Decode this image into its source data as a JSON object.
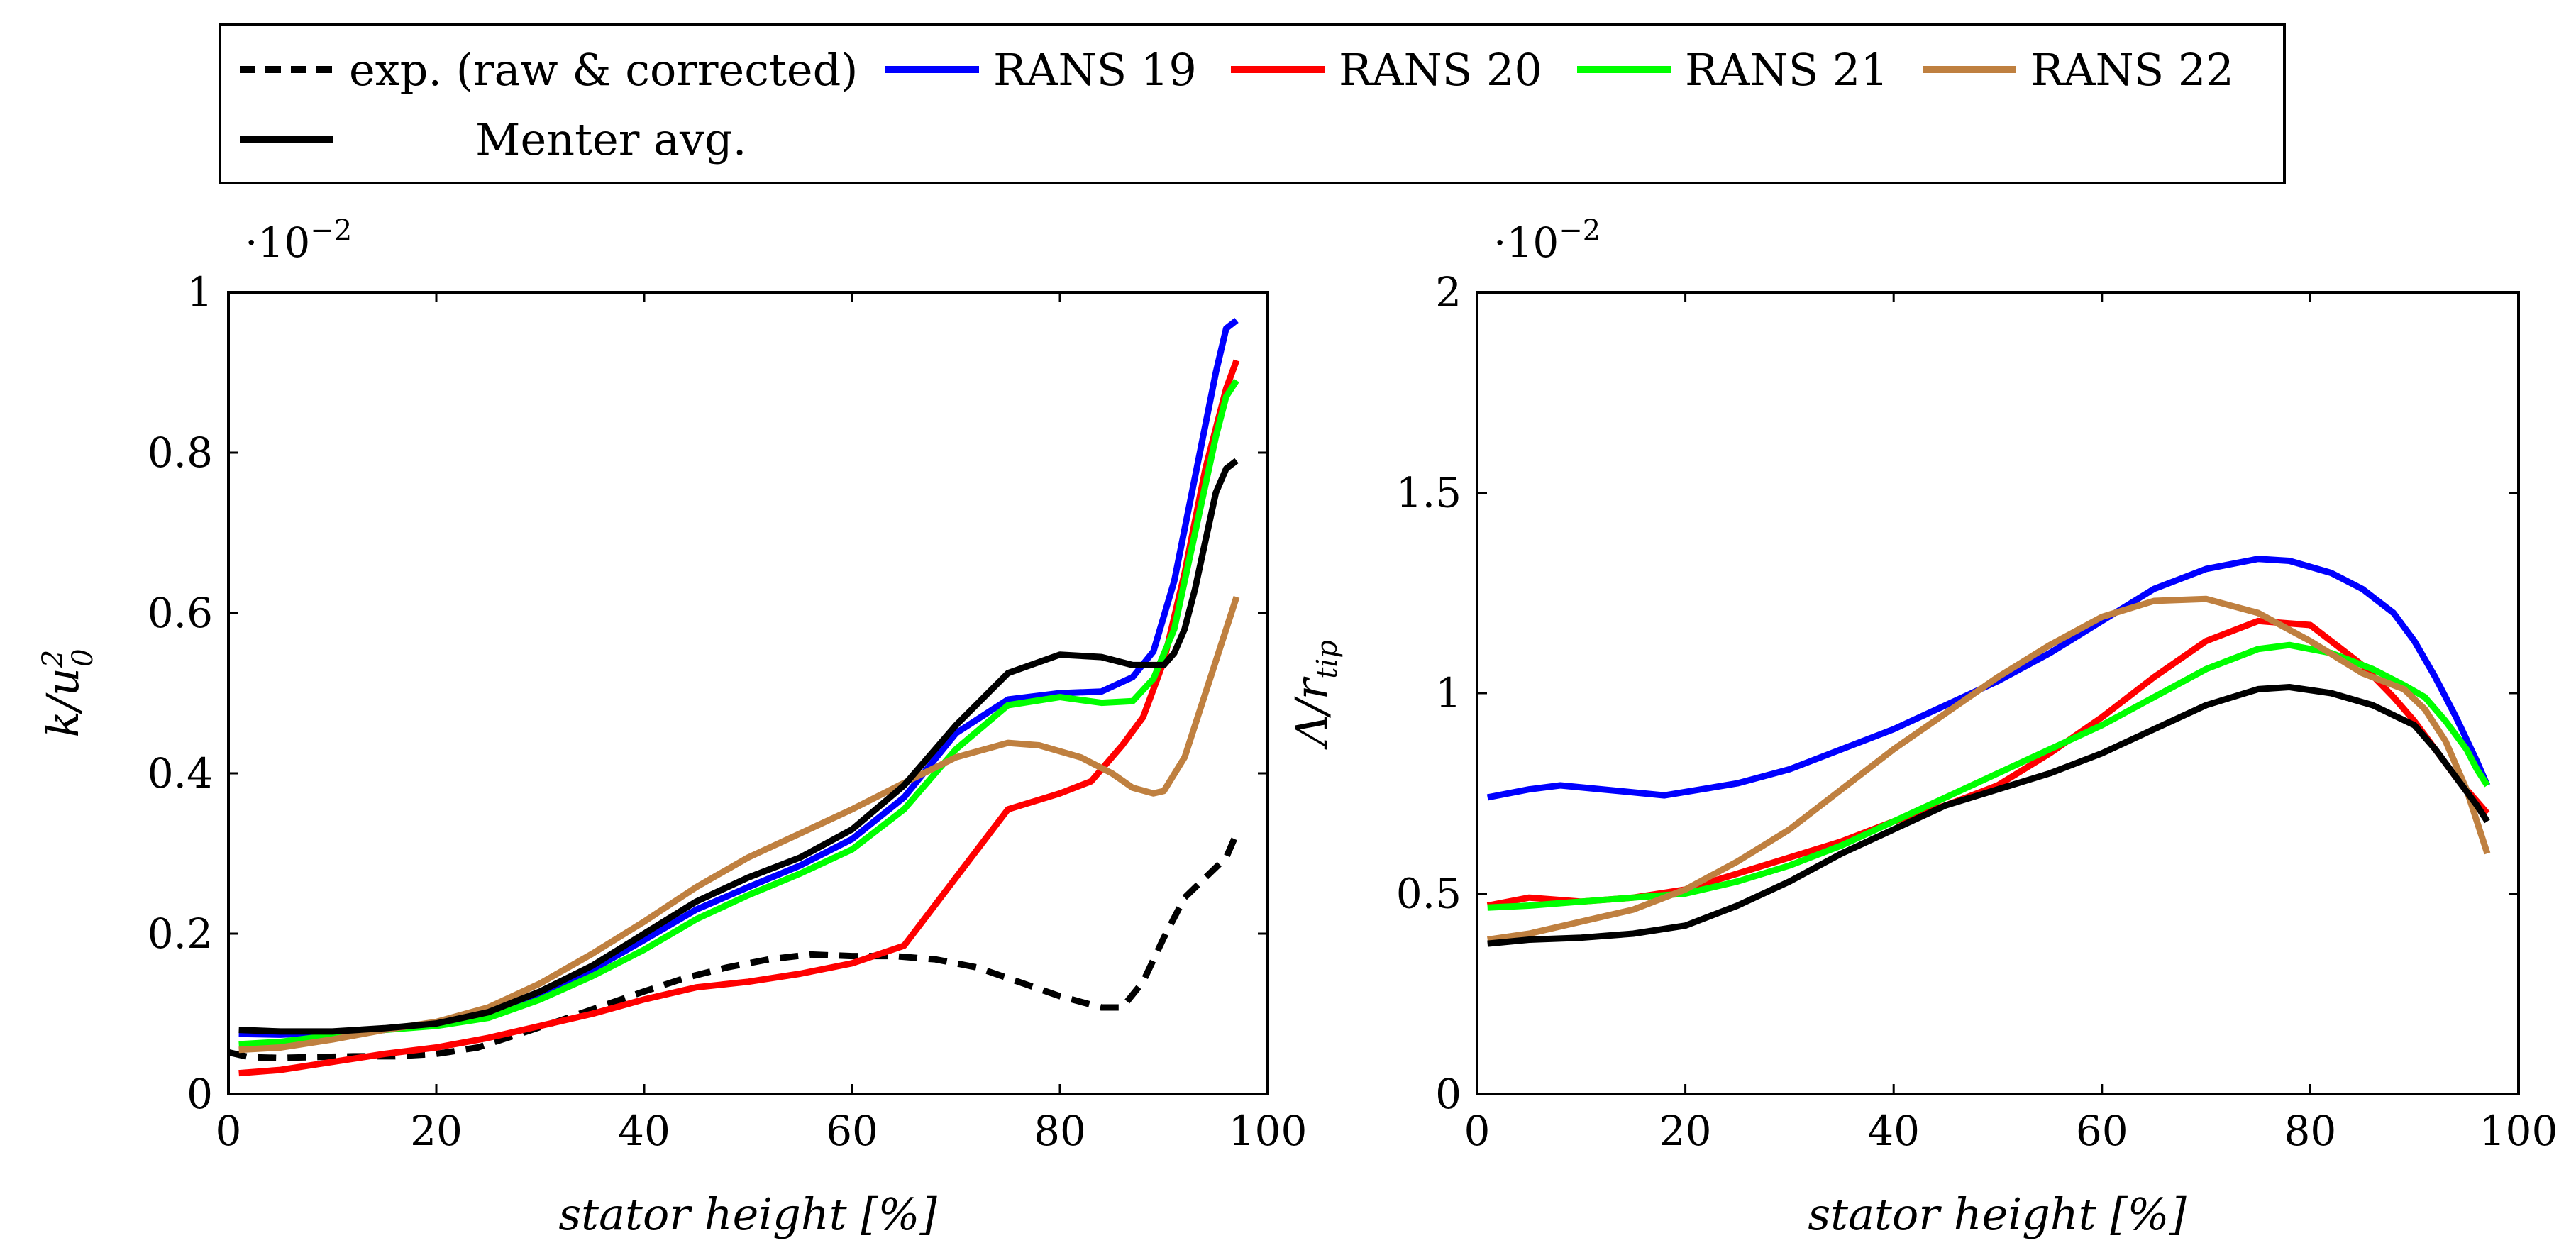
{
  "legend": {
    "entries": [
      {
        "label": "exp. (raw & corrected)",
        "color": "#000000",
        "dashed": true
      },
      {
        "label": "RANS 19",
        "color": "#0000ff"
      },
      {
        "label": "RANS 20",
        "color": "#ff0000"
      },
      {
        "label": "RANS 21",
        "color": "#00ff00"
      },
      {
        "label": "RANS 22",
        "color": "#bf8040"
      },
      {
        "label": "Menter avg.",
        "color": "#000000"
      }
    ]
  },
  "chart_data": [
    {
      "type": "line",
      "id": "left",
      "title": "",
      "xlabel": "stator height [%]",
      "ylabel": "k/u0²",
      "ylabel_main": "k/u",
      "ylabel_sup": "2",
      "ylabel_sub": "0",
      "scale_label": "·10⁻²",
      "scale_base": "·10",
      "scale_exp": "−2",
      "xlim": [
        0,
        100
      ],
      "ylim": [
        0,
        1
      ],
      "xticks": [
        0,
        20,
        40,
        60,
        80,
        100
      ],
      "xtick_labels": [
        "0",
        "20",
        "40",
        "60",
        "80",
        "100"
      ],
      "yticks": [
        0,
        0.2,
        0.4,
        0.6,
        0.8,
        1
      ],
      "ytick_labels": [
        "0",
        "0.2",
        "0.4",
        "0.6",
        "0.8",
        "1"
      ],
      "series": [
        {
          "name": "exp. (raw & corrected)",
          "color": "#000000",
          "dashed": true,
          "x": [
            0,
            2,
            5,
            8,
            12,
            16,
            20,
            24,
            28,
            32,
            36,
            40,
            44,
            48,
            52,
            56,
            60,
            64,
            68,
            72,
            76,
            80,
            84,
            86,
            88,
            90,
            92,
            94,
            96,
            97
          ],
          "y": [
            0.052,
            0.046,
            0.045,
            0.046,
            0.047,
            0.047,
            0.05,
            0.058,
            0.075,
            0.092,
            0.11,
            0.128,
            0.145,
            0.158,
            0.168,
            0.174,
            0.172,
            0.172,
            0.168,
            0.158,
            0.14,
            0.122,
            0.108,
            0.108,
            0.14,
            0.195,
            0.245,
            0.27,
            0.295,
            0.325
          ]
        },
        {
          "name": "RANS 19",
          "color": "#0000ff",
          "x": [
            1,
            5,
            10,
            15,
            20,
            25,
            30,
            35,
            40,
            45,
            50,
            55,
            60,
            65,
            70,
            75,
            80,
            84,
            87,
            89,
            91,
            93,
            95,
            96,
            97
          ],
          "y": [
            0.075,
            0.074,
            0.077,
            0.08,
            0.087,
            0.1,
            0.125,
            0.155,
            0.192,
            0.23,
            0.258,
            0.285,
            0.318,
            0.37,
            0.45,
            0.492,
            0.5,
            0.502,
            0.52,
            0.552,
            0.64,
            0.77,
            0.9,
            0.955,
            0.965
          ]
        },
        {
          "name": "RANS 20",
          "color": "#ff0000",
          "x": [
            1,
            5,
            10,
            15,
            20,
            25,
            30,
            35,
            40,
            45,
            50,
            55,
            60,
            65,
            70,
            75,
            80,
            83,
            86,
            88,
            90,
            92,
            94,
            96,
            97
          ],
          "y": [
            0.026,
            0.03,
            0.04,
            0.05,
            0.058,
            0.07,
            0.085,
            0.1,
            0.118,
            0.133,
            0.14,
            0.15,
            0.163,
            0.185,
            0.27,
            0.355,
            0.375,
            0.39,
            0.435,
            0.47,
            0.54,
            0.65,
            0.78,
            0.88,
            0.915
          ]
        },
        {
          "name": "RANS 21",
          "color": "#00ff00",
          "x": [
            1,
            5,
            10,
            15,
            20,
            25,
            30,
            35,
            40,
            45,
            50,
            55,
            60,
            65,
            70,
            75,
            80,
            84,
            87,
            89,
            91,
            93,
            95,
            96,
            97
          ],
          "y": [
            0.062,
            0.065,
            0.073,
            0.08,
            0.085,
            0.095,
            0.118,
            0.147,
            0.18,
            0.218,
            0.248,
            0.275,
            0.305,
            0.355,
            0.43,
            0.485,
            0.495,
            0.488,
            0.49,
            0.518,
            0.58,
            0.7,
            0.82,
            0.87,
            0.89
          ]
        },
        {
          "name": "RANS 22",
          "color": "#bf8040",
          "x": [
            1,
            5,
            10,
            15,
            20,
            25,
            30,
            35,
            40,
            45,
            50,
            55,
            60,
            65,
            70,
            75,
            78,
            82,
            85,
            87,
            89,
            90,
            92,
            94,
            96,
            97
          ],
          "y": [
            0.055,
            0.058,
            0.068,
            0.08,
            0.09,
            0.108,
            0.138,
            0.175,
            0.215,
            0.258,
            0.295,
            0.325,
            0.355,
            0.388,
            0.42,
            0.438,
            0.435,
            0.42,
            0.4,
            0.382,
            0.375,
            0.378,
            0.42,
            0.5,
            0.58,
            0.62
          ]
        },
        {
          "name": "Menter avg.",
          "color": "#000000",
          "x": [
            1,
            5,
            10,
            15,
            20,
            25,
            30,
            35,
            40,
            45,
            50,
            55,
            60,
            65,
            70,
            75,
            80,
            84,
            87,
            90,
            91,
            92,
            93,
            94,
            95,
            96,
            97
          ],
          "y": [
            0.08,
            0.078,
            0.078,
            0.082,
            0.088,
            0.102,
            0.128,
            0.16,
            0.2,
            0.24,
            0.27,
            0.295,
            0.33,
            0.385,
            0.46,
            0.525,
            0.548,
            0.545,
            0.535,
            0.535,
            0.55,
            0.58,
            0.63,
            0.69,
            0.75,
            0.78,
            0.79
          ]
        }
      ]
    },
    {
      "type": "line",
      "id": "right",
      "title": "",
      "xlabel": "stator height [%]",
      "ylabel": "Λ/r_tip",
      "ylabel_main": "Λ/r",
      "ylabel_sub": "tip",
      "scale_label": "·10⁻²",
      "scale_base": "·10",
      "scale_exp": "−2",
      "xlim": [
        0,
        100
      ],
      "ylim": [
        0,
        2
      ],
      "xticks": [
        0,
        20,
        40,
        60,
        80,
        100
      ],
      "xtick_labels": [
        "0",
        "20",
        "40",
        "60",
        "80",
        "100"
      ],
      "yticks": [
        0,
        0.5,
        1,
        1.5,
        2
      ],
      "ytick_labels": [
        "0",
        "0.5",
        "1",
        "1.5",
        "2"
      ],
      "series": [
        {
          "name": "RANS 19",
          "color": "#0000ff",
          "x": [
            1,
            5,
            8,
            12,
            18,
            25,
            30,
            35,
            40,
            45,
            50,
            55,
            60,
            65,
            70,
            75,
            78,
            82,
            85,
            88,
            90,
            92,
            94,
            96,
            97
          ],
          "y": [
            0.74,
            0.76,
            0.77,
            0.76,
            0.745,
            0.775,
            0.81,
            0.86,
            0.91,
            0.97,
            1.03,
            1.1,
            1.18,
            1.26,
            1.31,
            1.335,
            1.33,
            1.3,
            1.26,
            1.2,
            1.13,
            1.04,
            0.94,
            0.83,
            0.77
          ]
        },
        {
          "name": "RANS 20",
          "color": "#ff0000",
          "x": [
            1,
            5,
            10,
            15,
            20,
            25,
            30,
            35,
            40,
            45,
            50,
            55,
            60,
            65,
            70,
            75,
            80,
            85,
            88,
            90,
            92,
            94,
            96,
            97
          ],
          "y": [
            0.47,
            0.49,
            0.48,
            0.49,
            0.51,
            0.55,
            0.59,
            0.63,
            0.68,
            0.72,
            0.77,
            0.85,
            0.94,
            1.04,
            1.13,
            1.18,
            1.17,
            1.07,
            0.99,
            0.93,
            0.86,
            0.79,
            0.73,
            0.7
          ]
        },
        {
          "name": "RANS 21",
          "color": "#00ff00",
          "x": [
            1,
            5,
            10,
            15,
            20,
            25,
            30,
            35,
            40,
            45,
            50,
            55,
            60,
            65,
            70,
            75,
            78,
            82,
            86,
            89,
            91,
            93,
            95,
            96,
            97
          ],
          "y": [
            0.465,
            0.47,
            0.48,
            0.49,
            0.5,
            0.53,
            0.57,
            0.62,
            0.68,
            0.74,
            0.8,
            0.86,
            0.92,
            0.99,
            1.06,
            1.11,
            1.12,
            1.1,
            1.06,
            1.02,
            0.99,
            0.93,
            0.86,
            0.81,
            0.77
          ]
        },
        {
          "name": "RANS 22",
          "color": "#bf8040",
          "x": [
            1,
            5,
            10,
            15,
            20,
            25,
            30,
            35,
            40,
            45,
            50,
            55,
            60,
            65,
            70,
            75,
            80,
            85,
            89,
            91,
            93,
            95,
            96,
            97
          ],
          "y": [
            0.385,
            0.4,
            0.43,
            0.46,
            0.51,
            0.58,
            0.66,
            0.76,
            0.86,
            0.95,
            1.04,
            1.12,
            1.19,
            1.23,
            1.235,
            1.2,
            1.13,
            1.05,
            1.01,
            0.96,
            0.88,
            0.76,
            0.68,
            0.6
          ]
        },
        {
          "name": "Menter avg.",
          "color": "#000000",
          "x": [
            1,
            5,
            10,
            15,
            20,
            25,
            30,
            35,
            40,
            45,
            50,
            55,
            60,
            65,
            70,
            75,
            78,
            82,
            86,
            90,
            92,
            94,
            96,
            97
          ],
          "y": [
            0.375,
            0.385,
            0.39,
            0.4,
            0.42,
            0.47,
            0.53,
            0.6,
            0.66,
            0.72,
            0.76,
            0.8,
            0.85,
            0.91,
            0.97,
            1.01,
            1.015,
            1.0,
            0.97,
            0.92,
            0.86,
            0.79,
            0.72,
            0.68
          ]
        }
      ]
    }
  ]
}
